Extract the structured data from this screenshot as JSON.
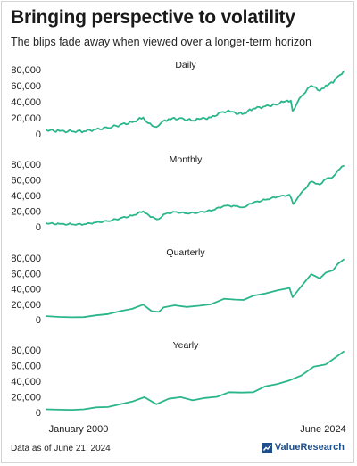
{
  "title": "Bringing perspective to volatility",
  "subtitle": "The blips fade away when viewed over a longer-term horizon",
  "footnote": "Data as of June 21, 2024",
  "brand": {
    "name": "ValueResearch",
    "icon": "chart-logo-icon"
  },
  "colors": {
    "line": "#2bb58a",
    "text": "#1a1a1a",
    "brand": "#1e4f8c"
  },
  "chart_data": [
    {
      "type": "line",
      "title": "Daily",
      "xlabel": "",
      "ylabel": "",
      "x_tick_labels": [],
      "yticks": [
        "0",
        "20,000",
        "40,000",
        "60,000",
        "80,000"
      ],
      "ylim": [
        0,
        80000
      ],
      "x": [
        1999.9,
        2001.0,
        2002.0,
        2003.0,
        2004.0,
        2005.0,
        2006.0,
        2007.0,
        2007.9,
        2008.3,
        2008.8,
        2009.2,
        2009.5,
        2010.0,
        2010.9,
        2011.9,
        2012.5,
        2013.5,
        2014.5,
        2015.1,
        2016.1,
        2017.0,
        2018.0,
        2018.8,
        2019.5,
        2020.1,
        2020.25,
        2020.6,
        2021.0,
        2021.8,
        2022.5,
        2023.0,
        2023.6,
        2024.0,
        2024.47
      ],
      "series": [
        {
          "values": [
            4800,
            3500,
            3100,
            3300,
            5800,
            7500,
            11500,
            14500,
            20500,
            13500,
            9000,
            10500,
            15500,
            18500,
            19500,
            16500,
            18500,
            20500,
            27500,
            27500,
            24500,
            31500,
            34500,
            36500,
            39500,
            41500,
            28500,
            37500,
            47500,
            60000,
            53500,
            60500,
            63500,
            71500,
            78000
          ]
        }
      ]
    },
    {
      "type": "line",
      "title": "Monthly",
      "xlabel": "",
      "ylabel": "",
      "x_tick_labels": [],
      "yticks": [
        "0",
        "20,000",
        "40,000",
        "60,000",
        "80,000"
      ],
      "ylim": [
        0,
        80000
      ],
      "x": [
        1999.9,
        2001.0,
        2002.0,
        2003.0,
        2004.0,
        2005.0,
        2006.0,
        2007.0,
        2007.9,
        2008.5,
        2009.2,
        2009.6,
        2010.5,
        2011.5,
        2012.5,
        2013.5,
        2014.6,
        2015.5,
        2016.2,
        2017.0,
        2018.0,
        2019.0,
        2020.0,
        2020.3,
        2020.8,
        2021.8,
        2022.5,
        2023.0,
        2023.6,
        2024.0,
        2024.47
      ],
      "series": [
        {
          "values": [
            4500,
            3500,
            3000,
            3200,
            5600,
            7200,
            11000,
            14200,
            19800,
            12500,
            10000,
            16000,
            19000,
            17000,
            18500,
            20500,
            27000,
            26500,
            25000,
            31000,
            34500,
            38500,
            41000,
            29000,
            40000,
            58000,
            54000,
            61000,
            64000,
            72000,
            78000
          ]
        }
      ]
    },
    {
      "type": "line",
      "title": "Quarterly",
      "xlabel": "",
      "ylabel": "",
      "x_tick_labels": [],
      "yticks": [
        "0",
        "20,000",
        "40,000",
        "60,000",
        "80,000"
      ],
      "ylim": [
        0,
        80000
      ],
      "x": [
        1999.9,
        2001.0,
        2002.0,
        2003.0,
        2004.0,
        2005.0,
        2006.0,
        2007.0,
        2007.9,
        2008.6,
        2009.2,
        2009.6,
        2010.5,
        2011.5,
        2012.5,
        2013.5,
        2014.6,
        2015.5,
        2016.2,
        2017.0,
        2018.0,
        2019.0,
        2020.0,
        2020.25,
        2020.8,
        2021.8,
        2022.5,
        2023.0,
        2023.6,
        2024.0,
        2024.47
      ],
      "series": [
        {
          "values": [
            4500,
            3500,
            3000,
            3300,
            5600,
            7200,
            11000,
            14000,
            19500,
            11000,
            10000,
            16000,
            18500,
            16500,
            18000,
            20000,
            27000,
            26000,
            25500,
            31000,
            34000,
            38000,
            41000,
            29000,
            40000,
            59000,
            53500,
            61000,
            64000,
            72500,
            78000
          ]
        }
      ]
    },
    {
      "type": "line",
      "title": "Yearly",
      "xlabel": "",
      "ylabel": "",
      "x_tick_labels": [
        "January 2000",
        "June 2024"
      ],
      "yticks": [
        "0",
        "20,000",
        "40,000",
        "60,000",
        "80,000"
      ],
      "ylim": [
        0,
        80000
      ],
      "x": [
        1999.9,
        2001.0,
        2002.0,
        2003.0,
        2004.0,
        2005.0,
        2006.0,
        2007.0,
        2008.0,
        2009.0,
        2010.0,
        2011.0,
        2012.0,
        2013.0,
        2014.0,
        2015.0,
        2016.0,
        2017.0,
        2018.0,
        2019.0,
        2020.0,
        2021.0,
        2022.0,
        2023.0,
        2024.47
      ],
      "series": [
        {
          "values": [
            4000,
            3500,
            3300,
            4000,
            6500,
            7000,
            10500,
            14000,
            19500,
            10500,
            17500,
            19500,
            15500,
            18500,
            20000,
            26000,
            25500,
            26000,
            33500,
            36500,
            41000,
            47500,
            58500,
            61500,
            78000
          ]
        }
      ]
    }
  ]
}
